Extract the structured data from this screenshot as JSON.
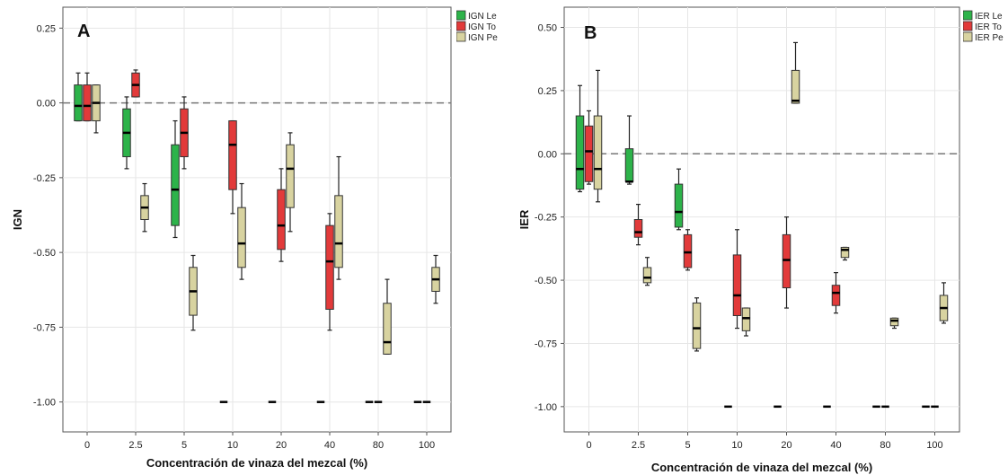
{
  "chart_data": [
    {
      "type": "boxplot",
      "panel_label": "A",
      "ylabel": "IGN",
      "xlabel": "Concentración de vinaza del mezcal (%)",
      "categories": [
        "0",
        "2.5",
        "5",
        "10",
        "20",
        "40",
        "80",
        "100"
      ],
      "y_ticks": [
        "0.25",
        "0.00",
        "-0.25",
        "-0.50",
        "-0.75",
        "-1.00"
      ],
      "ylim": [
        -1.1,
        0.32
      ],
      "reference_line": 0,
      "grid": true,
      "legend_position": "top-right",
      "series": [
        {
          "name": "IGN Le",
          "color": "#2db34a",
          "boxes": [
            {
              "min": -0.06,
              "q1": -0.06,
              "median": -0.01,
              "q3": 0.06,
              "max": 0.1
            },
            {
              "min": -0.22,
              "q1": -0.18,
              "median": -0.1,
              "q3": -0.02,
              "max": 0.02
            },
            {
              "min": -0.45,
              "q1": -0.41,
              "median": -0.29,
              "q3": -0.14,
              "max": -0.06
            },
            {
              "min": -1.0,
              "q1": -1.0,
              "median": -1.0,
              "q3": -1.0,
              "max": -1.0
            },
            {
              "min": -1.0,
              "q1": -1.0,
              "median": -1.0,
              "q3": -1.0,
              "max": -1.0
            },
            {
              "min": -1.0,
              "q1": -1.0,
              "median": -1.0,
              "q3": -1.0,
              "max": -1.0
            },
            {
              "min": -1.0,
              "q1": -1.0,
              "median": -1.0,
              "q3": -1.0,
              "max": -1.0
            },
            {
              "min": -1.0,
              "q1": -1.0,
              "median": -1.0,
              "q3": -1.0,
              "max": -1.0
            }
          ]
        },
        {
          "name": "IGN To",
          "color": "#e23a3a",
          "boxes": [
            {
              "min": -0.06,
              "q1": -0.06,
              "median": -0.01,
              "q3": 0.06,
              "max": 0.1
            },
            {
              "min": 0.02,
              "q1": 0.02,
              "median": 0.06,
              "q3": 0.1,
              "max": 0.11
            },
            {
              "min": -0.22,
              "q1": -0.18,
              "median": -0.1,
              "q3": -0.02,
              "max": 0.02
            },
            {
              "min": -0.37,
              "q1": -0.29,
              "median": -0.14,
              "q3": -0.06,
              "max": -0.06
            },
            {
              "min": -0.53,
              "q1": -0.49,
              "median": -0.41,
              "q3": -0.29,
              "max": -0.22
            },
            {
              "min": -0.76,
              "q1": -0.69,
              "median": -0.53,
              "q3": -0.41,
              "max": -0.37
            },
            {
              "min": -1.0,
              "q1": -1.0,
              "median": -1.0,
              "q3": -1.0,
              "max": -1.0
            },
            {
              "min": -1.0,
              "q1": -1.0,
              "median": -1.0,
              "q3": -1.0,
              "max": -1.0
            }
          ]
        },
        {
          "name": "IGN Pe",
          "color": "#d8d3a0",
          "boxes": [
            {
              "min": -0.1,
              "q1": -0.06,
              "median": 0.0,
              "q3": 0.06,
              "max": 0.06
            },
            {
              "min": -0.43,
              "q1": -0.39,
              "median": -0.35,
              "q3": -0.31,
              "max": -0.27
            },
            {
              "min": -0.76,
              "q1": -0.71,
              "median": -0.63,
              "q3": -0.55,
              "max": -0.51
            },
            {
              "min": -0.59,
              "q1": -0.55,
              "median": -0.47,
              "q3": -0.35,
              "max": -0.27
            },
            {
              "min": -0.43,
              "q1": -0.35,
              "median": -0.22,
              "q3": -0.14,
              "max": -0.1
            },
            {
              "min": -0.59,
              "q1": -0.55,
              "median": -0.47,
              "q3": -0.31,
              "max": -0.18
            },
            {
              "min": -0.84,
              "q1": -0.84,
              "median": -0.8,
              "q3": -0.67,
              "max": -0.59
            },
            {
              "min": -0.67,
              "q1": -0.63,
              "median": -0.59,
              "q3": -0.55,
              "max": -0.51
            }
          ]
        }
      ]
    },
    {
      "type": "boxplot",
      "panel_label": "B",
      "ylabel": "IER",
      "xlabel": "Concentración de vinaza del mezcal (%)",
      "categories": [
        "0",
        "2.5",
        "5",
        "10",
        "20",
        "40",
        "80",
        "100"
      ],
      "y_ticks": [
        "0.50",
        "0.25",
        "0.00",
        "-0.25",
        "-0.50",
        "-0.75",
        "-1.00"
      ],
      "ylim": [
        -1.1,
        0.58
      ],
      "reference_line": 0,
      "grid": true,
      "legend_position": "top-right",
      "series": [
        {
          "name": "IER Le",
          "color": "#2db34a",
          "boxes": [
            {
              "min": -0.15,
              "q1": -0.14,
              "median": -0.06,
              "q3": 0.15,
              "max": 0.27
            },
            {
              "min": -0.12,
              "q1": -0.11,
              "median": -0.11,
              "q3": 0.02,
              "max": 0.15
            },
            {
              "min": -0.3,
              "q1": -0.29,
              "median": -0.23,
              "q3": -0.12,
              "max": -0.06
            },
            {
              "min": -1.0,
              "q1": -1.0,
              "median": -1.0,
              "q3": -1.0,
              "max": -1.0
            },
            {
              "min": -1.0,
              "q1": -1.0,
              "median": -1.0,
              "q3": -1.0,
              "max": -1.0
            },
            {
              "min": -1.0,
              "q1": -1.0,
              "median": -1.0,
              "q3": -1.0,
              "max": -1.0
            },
            {
              "min": -1.0,
              "q1": -1.0,
              "median": -1.0,
              "q3": -1.0,
              "max": -1.0
            },
            {
              "min": -1.0,
              "q1": -1.0,
              "median": -1.0,
              "q3": -1.0,
              "max": -1.0
            }
          ]
        },
        {
          "name": "IER To",
          "color": "#e23a3a",
          "boxes": [
            {
              "min": -0.12,
              "q1": -0.11,
              "median": 0.01,
              "q3": 0.11,
              "max": 0.17
            },
            {
              "min": -0.36,
              "q1": -0.33,
              "median": -0.31,
              "q3": -0.26,
              "max": -0.2
            },
            {
              "min": -0.46,
              "q1": -0.45,
              "median": -0.39,
              "q3": -0.32,
              "max": -0.3
            },
            {
              "min": -0.69,
              "q1": -0.64,
              "median": -0.56,
              "q3": -0.4,
              "max": -0.3
            },
            {
              "min": -0.61,
              "q1": -0.53,
              "median": -0.42,
              "q3": -0.32,
              "max": -0.25
            },
            {
              "min": -0.63,
              "q1": -0.6,
              "median": -0.55,
              "q3": -0.52,
              "max": -0.47
            },
            {
              "min": -1.0,
              "q1": -1.0,
              "median": -1.0,
              "q3": -1.0,
              "max": -1.0
            },
            {
              "min": -1.0,
              "q1": -1.0,
              "median": -1.0,
              "q3": -1.0,
              "max": -1.0
            }
          ]
        },
        {
          "name": "IER Pe",
          "color": "#d8d3a0",
          "boxes": [
            {
              "min": -0.19,
              "q1": -0.14,
              "median": -0.06,
              "q3": 0.15,
              "max": 0.33
            },
            {
              "min": -0.52,
              "q1": -0.51,
              "median": -0.49,
              "q3": -0.45,
              "max": -0.41
            },
            {
              "min": -0.78,
              "q1": -0.77,
              "median": -0.69,
              "q3": -0.59,
              "max": -0.57
            },
            {
              "min": -0.72,
              "q1": -0.7,
              "median": -0.65,
              "q3": -0.61,
              "max": -0.61
            },
            {
              "min": 0.2,
              "q1": 0.2,
              "median": 0.21,
              "q3": 0.33,
              "max": 0.44
            },
            {
              "min": -0.42,
              "q1": -0.41,
              "median": -0.38,
              "q3": -0.37,
              "max": -0.37
            },
            {
              "min": -0.69,
              "q1": -0.68,
              "median": -0.66,
              "q3": -0.65,
              "max": -0.65
            },
            {
              "min": -0.67,
              "q1": -0.66,
              "median": -0.61,
              "q3": -0.56,
              "max": -0.51
            }
          ]
        }
      ]
    }
  ]
}
